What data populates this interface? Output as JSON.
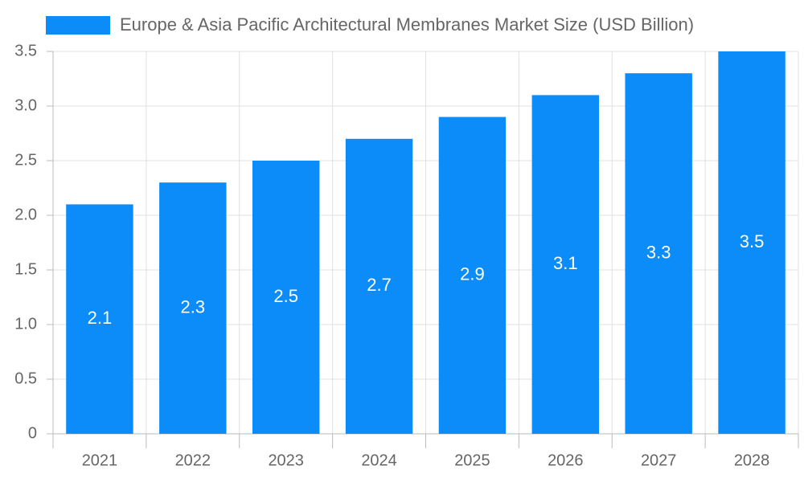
{
  "chart_data": {
    "type": "bar",
    "categories": [
      "2021",
      "2022",
      "2023",
      "2024",
      "2025",
      "2026",
      "2027",
      "2028"
    ],
    "series": [
      {
        "name": "Europe & Asia Pacific Architectural Membranes Market Size (USD Billion)",
        "color": "#0b8cf8",
        "values": [
          2.1,
          2.3,
          2.5,
          2.7,
          2.9,
          3.1,
          3.3,
          3.5
        ]
      }
    ],
    "ylim": [
      0,
      3.5
    ],
    "yticks": [
      0,
      0.5,
      {
        "value": 1,
        "label": "1.0"
      },
      1.5,
      {
        "value": 2,
        "label": "2.0"
      },
      2.5,
      {
        "value": 3,
        "label": "3.0"
      },
      3.5
    ],
    "grid": true
  }
}
